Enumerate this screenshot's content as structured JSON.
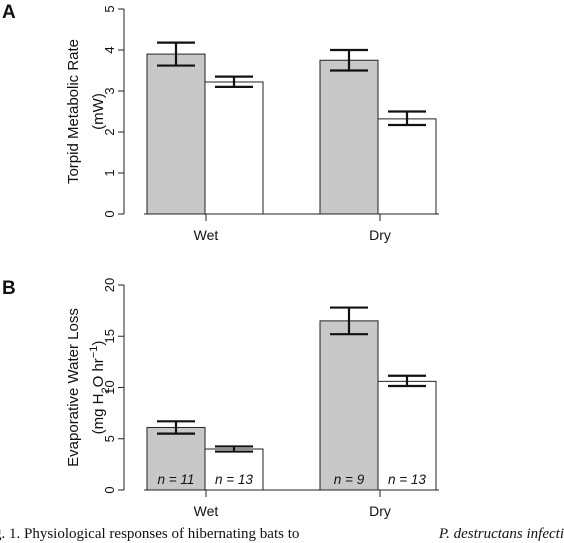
{
  "chart_data": [
    {
      "type": "bar",
      "panel_label": "A",
      "categories": [
        "Wet",
        "Dry"
      ],
      "ylabel_line1": "Torpid Metabolic Rate",
      "ylabel_line2": "(mW)",
      "ylim": [
        0,
        5
      ],
      "yticks": [
        "0",
        "1",
        "2",
        "3",
        "4",
        "5"
      ],
      "grid": false,
      "series": [
        {
          "fill": "#c8c8c8",
          "values": [
            3.9,
            3.75
          ],
          "err_low": [
            3.62,
            3.5
          ],
          "err_high": [
            4.18,
            4.0
          ]
        },
        {
          "fill": "#ffffff",
          "values": [
            3.22,
            2.32
          ],
          "err_low": [
            3.1,
            2.17
          ],
          "err_high": [
            3.35,
            2.5
          ]
        }
      ]
    },
    {
      "type": "bar",
      "panel_label": "B",
      "categories": [
        "Wet",
        "Dry"
      ],
      "ylabel_line1": "Evaporative Water Loss",
      "ylabel_main": "(mg H",
      "ylabel_sub": "2",
      "ylabel_mid": "O hr",
      "ylabel_sup": "−1",
      "ylabel_end": ")",
      "ylim": [
        0,
        20
      ],
      "yticks": [
        "0",
        "5",
        "10",
        "15",
        "20"
      ],
      "grid": false,
      "series": [
        {
          "fill": "#c8c8c8",
          "values": [
            6.1,
            16.5
          ],
          "err_low": [
            5.5,
            15.2
          ],
          "err_high": [
            6.7,
            17.8
          ],
          "n_labels": [
            "n = 11",
            "n = 9"
          ]
        },
        {
          "fill": "#ffffff",
          "values": [
            4.0,
            10.6
          ],
          "err_low": [
            3.75,
            10.15
          ],
          "err_high": [
            4.25,
            11.15
          ],
          "n_labels": [
            "n = 13",
            "n = 13"
          ]
        }
      ]
    }
  ],
  "caption": {
    "left": "g. 1. Physiological responses of hibernating bats to",
    "right": "P. destructans infecti"
  }
}
